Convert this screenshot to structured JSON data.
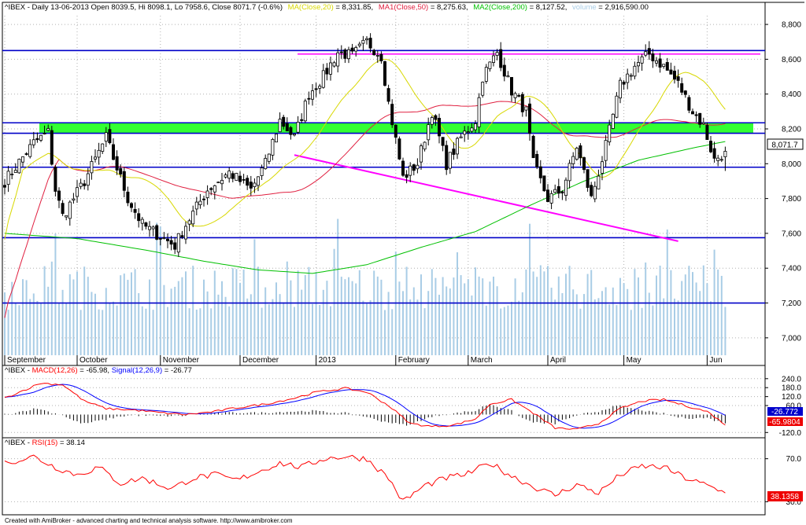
{
  "header": {
    "price": {
      "prefix": "^IBEX - Daily 13-06-2013 Open 8039.5, Hi 8098.1, Lo 7958.6, Close 8071.7 (-0.6%)",
      "ma20_label": "MA(Close,20)",
      "ma20_value": " = 8,331.85,",
      "ma50_label": "MA1(Close,50)",
      "ma50_value": " = 8,275.63,",
      "ma200_label": "MA2(Close,200)",
      "ma200_value": " = 8,127.52,",
      "volume_label": "volume",
      "volume_value": " = 2,916,590.00"
    },
    "macd": {
      "prefix": "^IBEX - ",
      "macd_label": "MACD(12,26)",
      "macd_value": " = -65.98, ",
      "signal_label": "Signal(12,26,9)",
      "signal_value": " = -26.77"
    },
    "rsi": {
      "prefix": "^IBEX - ",
      "rsi_label": "RSI(15)",
      "rsi_value": " = 38.14"
    }
  },
  "footer": "Created with AmiBroker - advanced charting and technical analysis software. http://www.amibroker.com",
  "colors": {
    "ma20": "#d8d800",
    "ma50": "#e02040",
    "ma200": "#00c000",
    "volume": "#a9cde6",
    "hline": "#0000c8",
    "magenta": "#ff00ff",
    "band": "#33ff33",
    "macd": "#0000ff",
    "signal": "#ff0000",
    "rsi": "#ff0000",
    "candle_up": "#ffffff",
    "candle_down": "#000000",
    "grid": "#b0b0b0"
  },
  "chart_data": [
    {
      "type": "candlestick",
      "panel": "price",
      "y_ticks": [
        "8,800",
        "8,600",
        "8,400",
        "8,200",
        "8,000",
        "7,800",
        "7,600",
        "7,400",
        "7,200",
        "7,000"
      ],
      "ylim": [
        6900,
        8850
      ],
      "x_labels": [
        {
          "label": "September",
          "index": 0
        },
        {
          "label": "October",
          "index": 20
        },
        {
          "label": "November",
          "index": 43
        },
        {
          "label": "December",
          "index": 65
        },
        {
          "label": "2013",
          "index": 86
        },
        {
          "label": "February",
          "index": 108
        },
        {
          "label": "March",
          "index": 128
        },
        {
          "label": "April",
          "index": 150
        },
        {
          "label": "May",
          "index": 171
        },
        {
          "label": "Jun",
          "index": 194
        }
      ],
      "anchors": [
        [
          0,
          7900
        ],
        [
          8,
          8120
        ],
        [
          12,
          8180
        ],
        [
          14,
          7850
        ],
        [
          16,
          7700
        ],
        [
          22,
          7900
        ],
        [
          28,
          8150
        ],
        [
          34,
          7800
        ],
        [
          38,
          7650
        ],
        [
          47,
          7530
        ],
        [
          50,
          7650
        ],
        [
          56,
          7850
        ],
        [
          62,
          7950
        ],
        [
          68,
          7850
        ],
        [
          72,
          8000
        ],
        [
          76,
          8250
        ],
        [
          80,
          8150
        ],
        [
          84,
          8400
        ],
        [
          88,
          8500
        ],
        [
          92,
          8640
        ],
        [
          96,
          8620
        ],
        [
          100,
          8700
        ],
        [
          104,
          8620
        ],
        [
          106,
          8350
        ],
        [
          110,
          7920
        ],
        [
          114,
          8000
        ],
        [
          118,
          8300
        ],
        [
          122,
          8000
        ],
        [
          126,
          8150
        ],
        [
          130,
          8250
        ],
        [
          132,
          8500
        ],
        [
          136,
          8640
        ],
        [
          140,
          8420
        ],
        [
          144,
          8300
        ],
        [
          146,
          8000
        ],
        [
          150,
          7800
        ],
        [
          154,
          7850
        ],
        [
          158,
          8100
        ],
        [
          162,
          7800
        ],
        [
          166,
          8100
        ],
        [
          170,
          8450
        ],
        [
          174,
          8560
        ],
        [
          178,
          8630
        ],
        [
          182,
          8560
        ],
        [
          186,
          8460
        ],
        [
          190,
          8300
        ],
        [
          193,
          8220
        ],
        [
          196,
          8020
        ],
        [
          199,
          8071.7
        ]
      ],
      "last": {
        "open": 8039.5,
        "high": 8098.1,
        "low": 7958.6,
        "close": 8071.7
      },
      "last_label": "8,071.7",
      "horizontal_levels": [
        8650,
        8235,
        8175,
        7980,
        7575,
        7200
      ],
      "magenta_level": 8630,
      "band": [
        8175,
        8235
      ],
      "trendline": {
        "from": [
          80,
          8050
        ],
        "to": [
          186,
          7555
        ]
      },
      "volume_max": 3000000
    },
    {
      "type": "line",
      "panel": "macd",
      "series": [
        {
          "name": "MACD(12,26)"
        },
        {
          "name": "Signal(12,26,9)"
        }
      ],
      "y_ticks": [
        "240.0",
        "180.0",
        "120.0",
        "60.0",
        "-120.0"
      ],
      "ylim": [
        -150,
        260
      ],
      "last_labels": [
        "-26.772",
        "-65.9804"
      ],
      "anchors": [
        [
          0,
          110
        ],
        [
          10,
          210
        ],
        [
          16,
          200
        ],
        [
          22,
          90
        ],
        [
          28,
          40
        ],
        [
          36,
          30
        ],
        [
          44,
          10
        ],
        [
          50,
          0
        ],
        [
          58,
          20
        ],
        [
          64,
          45
        ],
        [
          72,
          70
        ],
        [
          80,
          110
        ],
        [
          86,
          150
        ],
        [
          94,
          175
        ],
        [
          100,
          150
        ],
        [
          106,
          60
        ],
        [
          112,
          -60
        ],
        [
          118,
          -80
        ],
        [
          124,
          -70
        ],
        [
          130,
          -30
        ],
        [
          134,
          70
        ],
        [
          140,
          100
        ],
        [
          146,
          10
        ],
        [
          152,
          -90
        ],
        [
          158,
          -100
        ],
        [
          164,
          -60
        ],
        [
          170,
          40
        ],
        [
          176,
          90
        ],
        [
          182,
          100
        ],
        [
          188,
          60
        ],
        [
          194,
          20
        ],
        [
          199,
          -66
        ]
      ]
    },
    {
      "type": "line",
      "panel": "rsi",
      "series": [
        {
          "name": "RSI(15)"
        }
      ],
      "y_ticks": [
        "70.0",
        "30.0"
      ],
      "ylim": [
        20,
        80
      ],
      "last_label": "38.1358",
      "anchors": [
        [
          0,
          66
        ],
        [
          8,
          72
        ],
        [
          14,
          62
        ],
        [
          20,
          55
        ],
        [
          26,
          62
        ],
        [
          32,
          47
        ],
        [
          38,
          52
        ],
        [
          46,
          42
        ],
        [
          52,
          52
        ],
        [
          58,
          55
        ],
        [
          64,
          50
        ],
        [
          70,
          58
        ],
        [
          76,
          66
        ],
        [
          82,
          62
        ],
        [
          88,
          70
        ],
        [
          94,
          72
        ],
        [
          100,
          70
        ],
        [
          106,
          52
        ],
        [
          110,
          30
        ],
        [
          116,
          45
        ],
        [
          122,
          52
        ],
        [
          128,
          56
        ],
        [
          134,
          66
        ],
        [
          140,
          54
        ],
        [
          146,
          44
        ],
        [
          152,
          36
        ],
        [
          158,
          46
        ],
        [
          164,
          38
        ],
        [
          170,
          55
        ],
        [
          176,
          63
        ],
        [
          182,
          62
        ],
        [
          188,
          52
        ],
        [
          194,
          45
        ],
        [
          199,
          38.14
        ]
      ]
    }
  ]
}
